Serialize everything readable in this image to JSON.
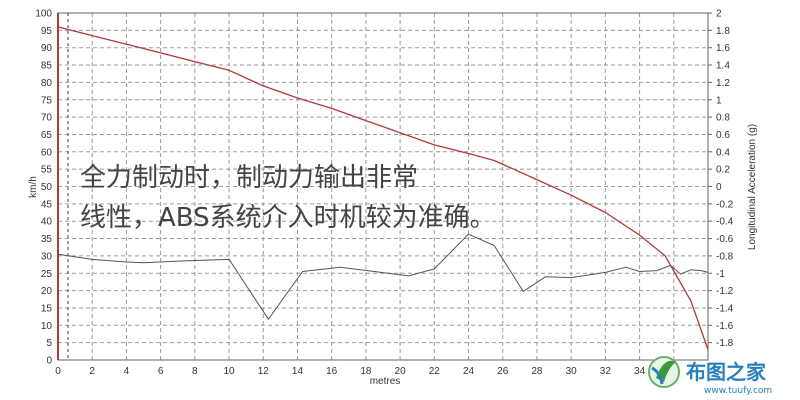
{
  "chart_data": {
    "type": "line",
    "xlabel": "metres",
    "ylabel_left": "km/h",
    "ylabel_right": "Longitudinal Acceleration (g)",
    "xlim": [
      0,
      38
    ],
    "ylim_left": [
      0,
      100
    ],
    "ylim_right": [
      -2,
      2
    ],
    "x_ticks": [
      0,
      2,
      4,
      6,
      8,
      10,
      12,
      14,
      16,
      18,
      20,
      22,
      24,
      26,
      28,
      30,
      32,
      34,
      36
    ],
    "y_left_ticks": [
      0,
      5,
      10,
      15,
      20,
      25,
      30,
      35,
      40,
      45,
      50,
      55,
      60,
      65,
      70,
      75,
      80,
      85,
      90,
      95,
      100
    ],
    "y_right_ticks": [
      "-1.8",
      "-1.6",
      "-1.4",
      "-1.2",
      "-1",
      "-0.8",
      "-0.6",
      "-0.4",
      "-0.2",
      "0",
      "0.2",
      "0.4",
      "0.6",
      "0.8",
      "1",
      "1.2",
      "1.4",
      "1.6",
      "1.8",
      "2"
    ],
    "grid": true,
    "series": [
      {
        "axis": "left",
        "color": "#b03a3a",
        "points": [
          [
            0,
            96
          ],
          [
            2,
            93.5
          ],
          [
            4,
            91
          ],
          [
            6,
            88.5
          ],
          [
            8,
            86
          ],
          [
            10,
            83.5
          ],
          [
            12,
            79
          ],
          [
            14,
            75.5
          ],
          [
            16,
            72.5
          ],
          [
            18,
            69
          ],
          [
            20,
            65.5
          ],
          [
            22,
            62
          ],
          [
            24,
            59.5
          ],
          [
            25.5,
            57.5
          ],
          [
            28,
            52
          ],
          [
            30,
            47.5
          ],
          [
            32,
            42.5
          ],
          [
            34,
            36
          ],
          [
            35.5,
            30
          ],
          [
            37,
            17
          ],
          [
            38,
            3
          ]
        ]
      },
      {
        "axis": "right",
        "color": "#555555",
        "points": [
          [
            0,
            -0.78
          ],
          [
            2,
            -0.84
          ],
          [
            4,
            -0.87
          ],
          [
            5,
            -0.88
          ],
          [
            7,
            -0.86
          ],
          [
            10,
            -0.84
          ],
          [
            12.3,
            -1.53
          ],
          [
            14.3,
            -0.98
          ],
          [
            16.5,
            -0.93
          ],
          [
            18.5,
            -0.98
          ],
          [
            20.5,
            -1.03
          ],
          [
            22,
            -0.95
          ],
          [
            24,
            -0.55
          ],
          [
            25.5,
            -0.68
          ],
          [
            27.2,
            -1.21
          ],
          [
            28.5,
            -1.04
          ],
          [
            30,
            -1.05
          ],
          [
            32,
            -0.99
          ],
          [
            33.2,
            -0.93
          ],
          [
            34,
            -0.98
          ],
          [
            35,
            -0.97
          ],
          [
            35.8,
            -0.91
          ],
          [
            36.4,
            -1.01
          ],
          [
            37,
            -0.96
          ],
          [
            37.6,
            -0.97
          ],
          [
            38,
            -0.99
          ]
        ]
      }
    ]
  },
  "caption": {
    "line1": "全力制动时，制动力输出非常",
    "line2": "线性，ABS系统介入时机较为准确。"
  },
  "watermark": {
    "name": "布图之家",
    "url": "www.tuufy.com"
  }
}
